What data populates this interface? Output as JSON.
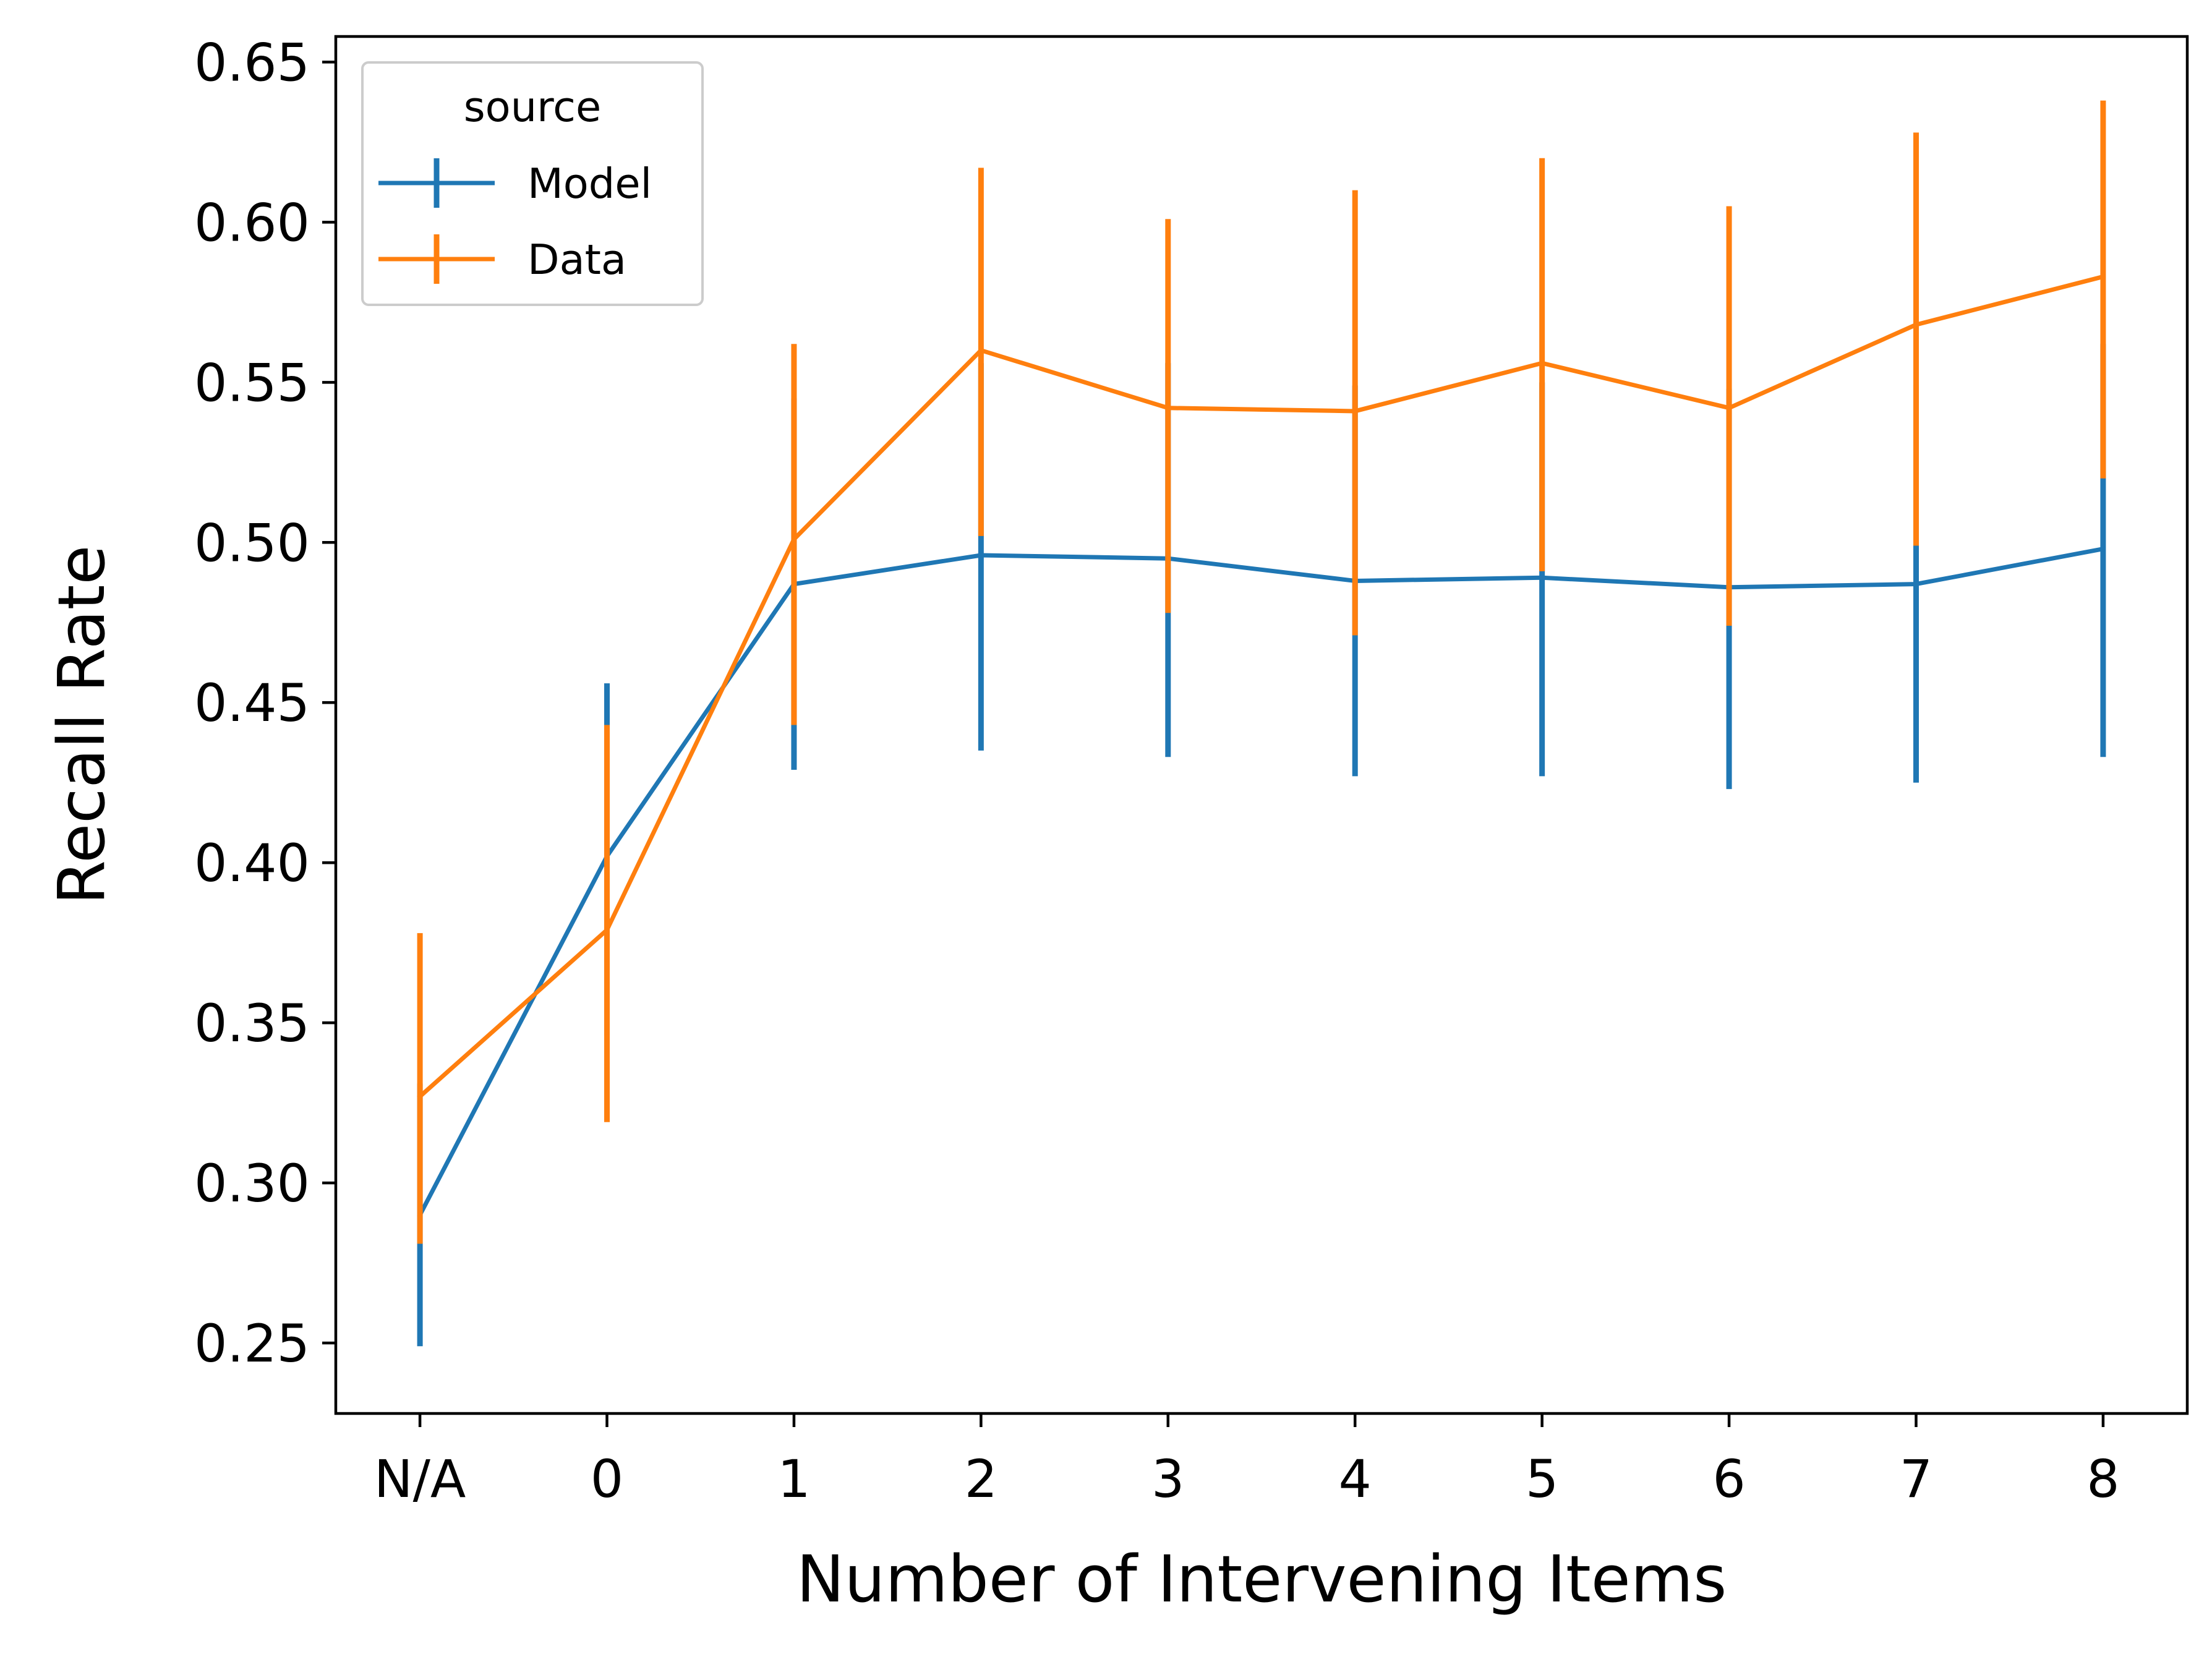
{
  "chart_data": {
    "type": "line",
    "xlabel": "Number of Intervening Items",
    "ylabel": "Recall Rate",
    "categories": [
      "N/A",
      "0",
      "1",
      "2",
      "3",
      "4",
      "5",
      "6",
      "7",
      "8"
    ],
    "ylim": [
      0.228,
      0.658
    ],
    "yticks": [
      0.25,
      0.3,
      0.35,
      0.4,
      0.45,
      0.5,
      0.55,
      0.6,
      0.65
    ],
    "ytick_labels": [
      "0.25",
      "0.30",
      "0.35",
      "0.40",
      "0.45",
      "0.50",
      "0.55",
      "0.60",
      "0.65"
    ],
    "grid": false,
    "legend": {
      "title": "source",
      "position": "top-left"
    },
    "series": [
      {
        "name": "Model",
        "color": "#1f77b4",
        "values": [
          0.29,
          0.402,
          0.487,
          0.496,
          0.495,
          0.488,
          0.489,
          0.486,
          0.487,
          0.498
        ],
        "err_low": [
          0.249,
          0.346,
          0.429,
          0.435,
          0.433,
          0.427,
          0.427,
          0.423,
          0.425,
          0.433
        ],
        "err_high": [
          0.331,
          0.456,
          0.545,
          0.556,
          0.556,
          0.549,
          0.55,
          0.548,
          0.549,
          0.562
        ]
      },
      {
        "name": "Data",
        "color": "#ff7f0e",
        "values": [
          0.327,
          0.379,
          0.501,
          0.56,
          0.542,
          0.541,
          0.556,
          0.542,
          0.568,
          0.583
        ],
        "err_low": [
          0.281,
          0.319,
          0.443,
          0.502,
          0.478,
          0.471,
          0.491,
          0.474,
          0.499,
          0.52
        ],
        "err_high": [
          0.378,
          0.443,
          0.562,
          0.617,
          0.601,
          0.61,
          0.62,
          0.605,
          0.628,
          0.638
        ]
      }
    ]
  }
}
